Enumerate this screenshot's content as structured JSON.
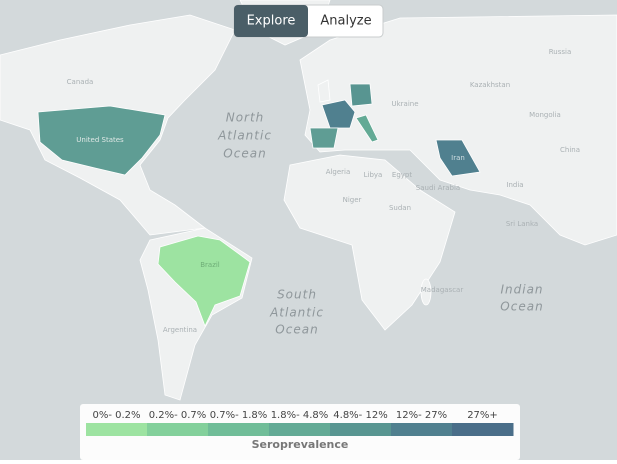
{
  "toggle": {
    "items": [
      {
        "label": "Explore",
        "active": true
      },
      {
        "label": "Analyze",
        "active": false
      }
    ]
  },
  "map": {
    "ocean_labels": [
      [
        "North",
        "Atlantic",
        "Ocean"
      ],
      [
        "South",
        "Atlantic",
        "Ocean"
      ],
      [
        "Indian",
        "Ocean"
      ]
    ],
    "country_labels": [
      "Canada",
      "United States",
      "Brazil",
      "Iran",
      "Russia",
      "Kazakhstan",
      "Mongolia",
      "China",
      "India",
      "Ukraine",
      "Algeria",
      "Libya",
      "Egypt",
      "Saudi Arabia",
      "Niger",
      "Sudan",
      "Madagascar",
      "Sri Lanka",
      "Argentina"
    ]
  },
  "legend": {
    "title": "Seroprevalence",
    "bins": [
      {
        "label": "0%- 0.2%",
        "color": "#9de3a1"
      },
      {
        "label": "0.2%- 0.7%",
        "color": "#83d09b"
      },
      {
        "label": "0.7%- 1.8%",
        "color": "#70bd98"
      },
      {
        "label": "1.8%- 4.8%",
        "color": "#63aa95"
      },
      {
        "label": "4.8%- 12%",
        "color": "#589591"
      },
      {
        "label": "12%- 27%",
        "color": "#50808f"
      },
      {
        "label": "27%+",
        "color": "#4a6e89"
      }
    ]
  }
}
